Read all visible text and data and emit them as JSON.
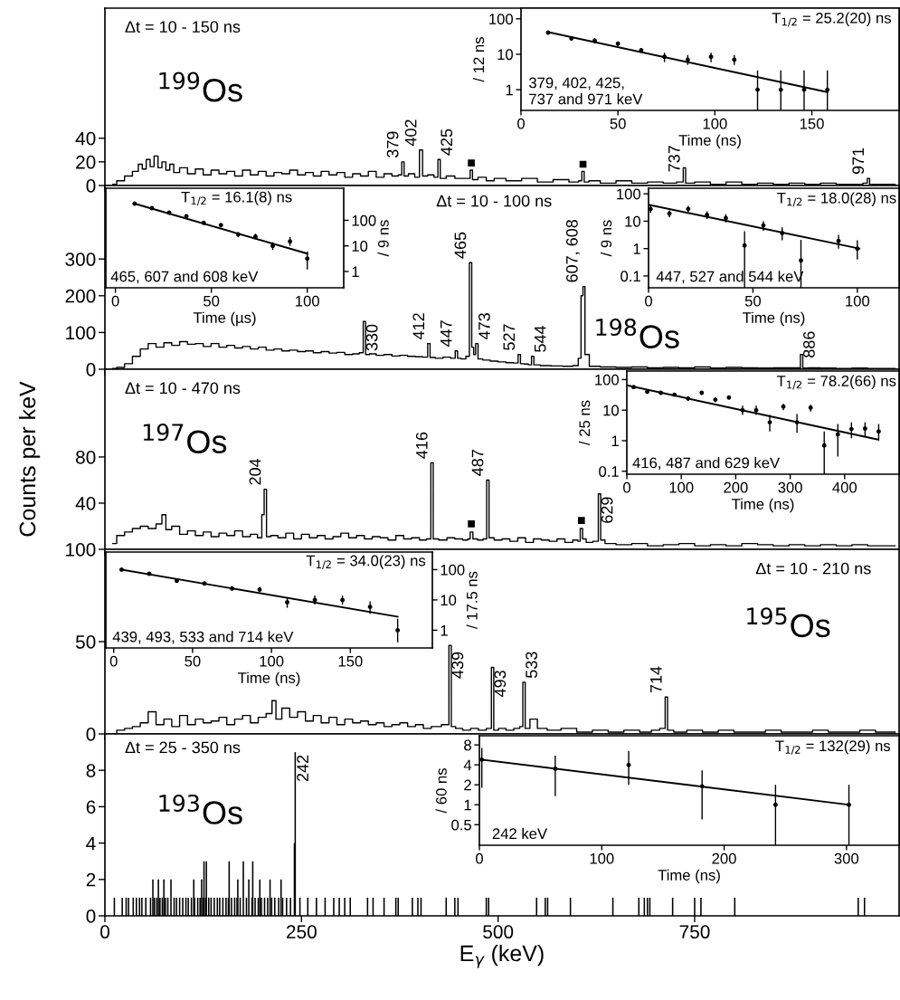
{
  "chart_data": [
    {
      "type": "step",
      "annotations": [
        "Δt = 10 - 150 ns",
        "$^{199}$Os",
        {
          "text": "379",
          "x": 379,
          "y": 20
        },
        {
          "text": "402",
          "x": 402,
          "y": 30
        },
        {
          "text": "425",
          "x": 425,
          "y": 22
        },
        {
          "text": "737",
          "x": 737,
          "y": 8
        },
        {
          "text": "971",
          "x": 971,
          "y": 6
        }
      ],
      "xlim": [
        0,
        1010
      ],
      "xticks": [
        0,
        250,
        500,
        750
      ],
      "ylim": [
        0,
        150
      ],
      "yticks": [
        0,
        20,
        40
      ],
      "tick_labels": "y",
      "series": [
        {
          "color": "#000000",
          "x": [
            10,
            20,
            30,
            40,
            45,
            50,
            55,
            60,
            65,
            70,
            75,
            80,
            85,
            90,
            100,
            110,
            120,
            130,
            140,
            150,
            160,
            170,
            180,
            190,
            200,
            210,
            220,
            230,
            240,
            250,
            260,
            270,
            280,
            290,
            300,
            310,
            320,
            330,
            340,
            350,
            360,
            370,
            376,
            379,
            382,
            390,
            398,
            402,
            406,
            415,
            422,
            425,
            428,
            440,
            450,
            463,
            466,
            469,
            480,
            490,
            500,
            520,
            540,
            560,
            580,
            600,
            605,
            608,
            611,
            620,
            640,
            660,
            680,
            700,
            720,
            734,
            737,
            740,
            760,
            780,
            800,
            820,
            840,
            860,
            880,
            900,
            920,
            940,
            960,
            968,
            971,
            974,
            990,
            1005
          ],
          "values": [
            1,
            4,
            8,
            12,
            18,
            14,
            22,
            16,
            25,
            15,
            20,
            13,
            18,
            11,
            15,
            10,
            14,
            9,
            13,
            10,
            12,
            8,
            13,
            9,
            12,
            8,
            11,
            10,
            13,
            9,
            11,
            8,
            12,
            9,
            11,
            7,
            10,
            8,
            12,
            7,
            10,
            8,
            9,
            20,
            8,
            10,
            7,
            30,
            8,
            9,
            7,
            22,
            6,
            8,
            6,
            6,
            13,
            5,
            7,
            4,
            6,
            4,
            6,
            3,
            5,
            3,
            4,
            12,
            3,
            4,
            2,
            4,
            2,
            3,
            2,
            3,
            15,
            2,
            3,
            1,
            3,
            1,
            2,
            1,
            2,
            1,
            2,
            1,
            1,
            2,
            6,
            1,
            1,
            1
          ]
        },
        {
          "type": "scatter",
          "marker": "square",
          "color": "#000000",
          "x": [
            466,
            608
          ],
          "values": [
            19,
            18
          ]
        }
      ]
    },
    {
      "type": "scatter",
      "log": "y",
      "xlabel": "Time (ns)",
      "ylabel": "/ 12 ns",
      "annotations": [
        "T$_{1/2}$ = 25.2(20) ns",
        "379, 402, 425,\n737 and 971 keV"
      ],
      "xlim": [
        0,
        195
      ],
      "xticks": [
        0,
        50,
        100,
        150
      ],
      "ylim": [
        0.26,
        200
      ],
      "yticks": [
        1,
        10,
        100
      ],
      "series": [
        {
          "marker": "circle",
          "color": "#000000",
          "x": [
            14,
            26,
            38,
            50,
            62,
            74,
            86,
            98,
            110,
            122,
            134,
            146,
            158
          ],
          "values": [
            41,
            28,
            24,
            20,
            13,
            8.5,
            7,
            8.5,
            7,
            1,
            1,
            1,
            1
          ],
          "errors": [
            [
              37,
              45
            ],
            [
              24,
              32
            ],
            [
              20,
              28
            ],
            [
              17,
              23
            ],
            [
              11,
              15
            ],
            [
              6,
              11
            ],
            [
              5,
              9.5
            ],
            [
              6,
              11
            ],
            [
              5,
              9.5
            ],
            [
              0.26,
              3.5
            ],
            [
              0.26,
              3.5
            ],
            [
              0.26,
              3.5
            ],
            [
              0.26,
              3.5
            ]
          ]
        },
        {
          "type": "line",
          "color": "#000000",
          "x": [
            14,
            158
          ],
          "values": [
            42,
            0.85
          ]
        }
      ]
    },
    {
      "type": "step",
      "annotations": [
        "Δt = 10 - 100 ns",
        "$^{198}$Os",
        {
          "text": "330",
          "x": 330,
          "y": 130
        },
        {
          "text": "412",
          "x": 412,
          "y": 70
        },
        {
          "text": "447",
          "x": 447,
          "y": 50
        },
        {
          "text": "465",
          "x": 465,
          "y": 290
        },
        {
          "text": "473",
          "x": 473,
          "y": 70
        },
        {
          "text": "527",
          "x": 527,
          "y": 40
        },
        {
          "text": "544",
          "x": 544,
          "y": 35
        },
        {
          "text": "607, 608",
          "x": 607,
          "y": 225
        },
        {
          "text": "886",
          "x": 886,
          "y": 20
        }
      ],
      "xlim": [
        0,
        1010
      ],
      "xticks": [
        0,
        250,
        500,
        750
      ],
      "ylim": [
        0,
        500
      ],
      "yticks": [
        0,
        100,
        200,
        300
      ],
      "tick_labels": "y",
      "series": [
        {
          "color": "#000000",
          "x": [
            10,
            20,
            30,
            40,
            50,
            60,
            70,
            80,
            90,
            100,
            110,
            120,
            130,
            140,
            150,
            160,
            170,
            180,
            190,
            200,
            210,
            220,
            230,
            240,
            250,
            260,
            270,
            280,
            290,
            300,
            310,
            320,
            327,
            330,
            333,
            340,
            350,
            360,
            370,
            380,
            390,
            400,
            409,
            412,
            415,
            425,
            435,
            444,
            447,
            450,
            456,
            462,
            465,
            468,
            470,
            473,
            476,
            485,
            495,
            505,
            515,
            524,
            527,
            530,
            536,
            541,
            544,
            547,
            560,
            575,
            590,
            600,
            604,
            607,
            609,
            612,
            620,
            640,
            660,
            680,
            700,
            720,
            740,
            760,
            780,
            800,
            820,
            840,
            860,
            883,
            886,
            889,
            900,
            920,
            940,
            960,
            980,
            1005
          ],
          "values": [
            2,
            5,
            15,
            35,
            55,
            70,
            60,
            72,
            65,
            75,
            68,
            70,
            62,
            70,
            60,
            65,
            58,
            62,
            55,
            60,
            52,
            55,
            50,
            52,
            48,
            50,
            45,
            48,
            44,
            46,
            40,
            42,
            45,
            130,
            40,
            42,
            38,
            40,
            36,
            38,
            35,
            34,
            33,
            70,
            32,
            30,
            33,
            30,
            50,
            30,
            28,
            35,
            290,
            60,
            40,
            70,
            28,
            25,
            22,
            20,
            18,
            17,
            40,
            15,
            14,
            12,
            35,
            12,
            10,
            9,
            8,
            10,
            30,
            200,
            225,
            40,
            8,
            6,
            5,
            6,
            4,
            5,
            4,
            6,
            3,
            5,
            4,
            3,
            4,
            4,
            40,
            3,
            4,
            3,
            2,
            3,
            2,
            2
          ]
        }
      ]
    },
    {
      "type": "scatter",
      "log": "y",
      "xlabel": "Time (µs)",
      "ylabel": "/ 9 ns",
      "annotations": [
        "T$_{1/2}$ = 16.1(8) ns",
        "465, 607 and 608 keV"
      ],
      "xlim": [
        -5,
        119
      ],
      "xticks": [
        0,
        50,
        100
      ],
      "ylim": [
        0.23,
        1800
      ],
      "yticks": [
        1,
        10,
        100
      ],
      "series": [
        {
          "marker": "circle",
          "color": "#000000",
          "x": [
            10,
            19,
            28,
            37,
            46,
            55,
            64,
            73,
            82,
            91,
            100
          ],
          "values": [
            450,
            300,
            200,
            145,
            80,
            65,
            28,
            23,
            10,
            15,
            3.2
          ],
          "errors": [
            null,
            null,
            null,
            null,
            null,
            null,
            [
              22,
              35
            ],
            [
              18,
              30
            ],
            [
              7,
              14
            ],
            [
              10,
              22
            ],
            [
              1.2,
              6
            ]
          ]
        },
        {
          "type": "line",
          "color": "#000000",
          "x": [
            10,
            100
          ],
          "values": [
            450,
            5
          ]
        }
      ]
    },
    {
      "type": "scatter",
      "log": "y",
      "xlabel": "Time (ns)",
      "ylabel": "/ 9 ns",
      "annotations": [
        "T$_{1/2}$ = 18.0(28) ns",
        "447, 527 and 544 keV"
      ],
      "xlim": [
        0,
        120
      ],
      "xticks": [
        0,
        50,
        100
      ],
      "ylim": [
        0.037,
        160
      ],
      "yticks": [
        0.1,
        1,
        10,
        100
      ],
      "series": [
        {
          "marker": "circle",
          "color": "#000000",
          "x": [
            1,
            10,
            19,
            28,
            37,
            46,
            55,
            64,
            73,
            91,
            100
          ],
          "values": [
            28,
            19,
            28,
            17,
            13,
            1.3,
            7,
            3.7,
            0.37,
            1.9,
            1
          ],
          "errors": [
            [
              20,
              38
            ],
            [
              14,
              25
            ],
            [
              21,
              36
            ],
            [
              12,
              23
            ],
            [
              9,
              18
            ],
            [
              0.037,
              4.3
            ],
            [
              4.5,
              10
            ],
            [
              2,
              6
            ],
            [
              0.037,
              2.1
            ],
            [
              1,
              3.2
            ],
            [
              0.4,
              2
            ]
          ]
        },
        {
          "type": "line",
          "color": "#000000",
          "x": [
            0,
            101
          ],
          "values": [
            40,
            1
          ]
        }
      ]
    },
    {
      "type": "step",
      "ylabel": "Counts per keV",
      "annotations": [
        "Δt = 10 - 470 ns",
        "$^{197}$Os",
        {
          "text": "204",
          "x": 204,
          "y": 52
        },
        {
          "text": "416",
          "x": 416,
          "y": 75
        },
        {
          "text": "487",
          "x": 487,
          "y": 60
        },
        {
          "text": "629",
          "x": 629,
          "y": 48
        }
      ],
      "xlim": [
        0,
        1010
      ],
      "xticks": [
        0,
        250,
        500,
        750
      ],
      "ylim": [
        0,
        156
      ],
      "yticks": [
        40,
        80
      ],
      "tick_labels": "y",
      "series": [
        {
          "color": "#000000",
          "x": [
            10,
            20,
            30,
            40,
            50,
            60,
            70,
            75,
            80,
            90,
            100,
            110,
            120,
            130,
            140,
            150,
            160,
            170,
            180,
            190,
            198,
            201,
            204,
            207,
            215,
            225,
            235,
            245,
            255,
            265,
            275,
            285,
            295,
            305,
            315,
            325,
            335,
            345,
            355,
            365,
            375,
            385,
            395,
            405,
            413,
            416,
            419,
            430,
            440,
            450,
            460,
            463,
            466,
            470,
            478,
            484,
            487,
            490,
            500,
            510,
            520,
            530,
            540,
            550,
            560,
            570,
            580,
            590,
            600,
            603,
            606,
            609,
            615,
            626,
            629,
            632,
            640,
            660,
            680,
            700,
            720,
            740,
            760,
            780,
            800,
            820,
            840,
            860,
            880,
            900,
            920,
            940,
            960,
            980,
            1005
          ],
          "values": [
            5,
            12,
            15,
            18,
            20,
            18,
            22,
            30,
            17,
            20,
            13,
            16,
            12,
            15,
            11,
            14,
            12,
            16,
            11,
            13,
            10,
            30,
            52,
            11,
            12,
            10,
            14,
            9,
            13,
            10,
            12,
            9,
            11,
            14,
            10,
            12,
            9,
            11,
            10,
            8,
            12,
            9,
            10,
            8,
            9,
            75,
            9,
            8,
            10,
            9,
            8,
            9,
            15,
            9,
            8,
            9,
            60,
            10,
            8,
            9,
            7,
            10,
            6,
            9,
            8,
            7,
            9,
            6,
            8,
            7,
            18,
            9,
            6,
            7,
            48,
            8,
            5,
            4,
            5,
            3,
            4,
            5,
            3,
            4,
            3,
            5,
            4,
            3,
            4,
            3,
            4,
            3,
            4,
            3,
            3
          ]
        },
        {
          "type": "scatter",
          "marker": "square",
          "color": "#000000",
          "x": [
            466,
            606
          ],
          "values": [
            22,
            25
          ]
        }
      ]
    },
    {
      "type": "scatter",
      "log": "y",
      "xlabel": "Time (ns)",
      "ylabel": "/ 25 ns",
      "annotations": [
        "T$_{1/2}$ = 78.2(66) ns",
        "416, 487 and 629 keV"
      ],
      "xlim": [
        0,
        500
      ],
      "xticks": [
        0,
        100,
        200,
        300,
        400
      ],
      "ylim": [
        0.08,
        190
      ],
      "yticks": [
        0.1,
        1,
        10,
        100
      ],
      "series": [
        {
          "marker": "circle",
          "color": "#000000",
          "x": [
            12.5,
            37.5,
            62.5,
            87.5,
            112.5,
            137.5,
            162.5,
            187.5,
            212.5,
            237.5,
            262.5,
            287.5,
            312.5,
            337.5,
            362.5,
            387.5,
            412.5,
            437.5,
            462.5
          ],
          "values": [
            57,
            40,
            37,
            32,
            24,
            37,
            22,
            26,
            10,
            10,
            4,
            13,
            4,
            12,
            0.7,
            1.6,
            2.4,
            2.5,
            2
          ],
          "errors": [
            [
              52,
              62
            ],
            [
              36,
              44
            ],
            [
              33,
              41
            ],
            [
              28,
              36
            ],
            [
              20,
              28
            ],
            [
              32,
              42
            ],
            [
              18,
              26
            ],
            [
              22,
              30
            ],
            [
              7,
              14
            ],
            [
              7,
              14
            ],
            [
              2,
              7
            ],
            [
              10,
              16
            ],
            [
              1.8,
              7.5
            ],
            [
              9,
              15
            ],
            [
              0.08,
              2
            ],
            [
              0.3,
              3.5
            ],
            [
              1.2,
              4
            ],
            [
              1.3,
              4
            ],
            [
              1,
              3.5
            ]
          ]
        },
        {
          "type": "line",
          "color": "#000000",
          "x": [
            0,
            460
          ],
          "values": [
            65,
            1.1
          ]
        }
      ]
    },
    {
      "type": "step",
      "annotations": [
        "Δt = 10 - 210 ns",
        "$^{195}$Os",
        {
          "text": "439",
          "x": 439,
          "y": 46
        },
        {
          "text": "493",
          "x": 493,
          "y": 36
        },
        {
          "text": "533",
          "x": 533,
          "y": 28
        },
        {
          "text": "714",
          "x": 714,
          "y": 20
        }
      ],
      "xlim": [
        0,
        1010
      ],
      "xticks": [
        0,
        250,
        500,
        750
      ],
      "ylim": [
        0,
        100
      ],
      "yticks": [
        0,
        50,
        100
      ],
      "tick_labels": "y",
      "series": [
        {
          "color": "#000000",
          "x": [
            10,
            20,
            30,
            40,
            50,
            60,
            70,
            80,
            90,
            100,
            110,
            120,
            130,
            140,
            150,
            160,
            170,
            180,
            190,
            200,
            210,
            215,
            220,
            230,
            240,
            250,
            260,
            270,
            280,
            290,
            300,
            310,
            320,
            330,
            340,
            350,
            360,
            370,
            380,
            390,
            400,
            410,
            420,
            436,
            439,
            442,
            450,
            460,
            470,
            480,
            490,
            493,
            496,
            505,
            515,
            525,
            530,
            533,
            536,
            545,
            555,
            570,
            590,
            610,
            630,
            650,
            670,
            690,
            700,
            711,
            714,
            717,
            730,
            750,
            770,
            790,
            810,
            830,
            850,
            870,
            890,
            910,
            930,
            950,
            970,
            990,
            1005
          ],
          "values": [
            0,
            2,
            3,
            4,
            6,
            12,
            5,
            8,
            4,
            10,
            5,
            8,
            6,
            7,
            9,
            5,
            8,
            10,
            6,
            9,
            11,
            18,
            8,
            14,
            9,
            12,
            7,
            10,
            6,
            9,
            5,
            8,
            6,
            7,
            5,
            6,
            4,
            5,
            6,
            4,
            5,
            3,
            4,
            5,
            48,
            4,
            3,
            2,
            3,
            2,
            3,
            36,
            2,
            3,
            2,
            3,
            4,
            28,
            3,
            8,
            3,
            2,
            3,
            1,
            2,
            1,
            2,
            1,
            2,
            3,
            20,
            2,
            1,
            2,
            1,
            2,
            1,
            1,
            2,
            1,
            1,
            2,
            1,
            1,
            2,
            1,
            1
          ]
        }
      ]
    },
    {
      "type": "scatter",
      "log": "y",
      "xlabel": "Time (ns)",
      "ylabel": "/ 17.5 ns",
      "annotations": [
        "T$_{1/2}$ = 34.0(23) ns",
        "439, 493, 533 and 714 keV"
      ],
      "xlim": [
        -5,
        202
      ],
      "xticks": [
        0,
        50,
        100,
        150
      ],
      "ylim": [
        0.26,
        380
      ],
      "yticks": [
        1,
        10,
        100
      ],
      "series": [
        {
          "marker": "circle",
          "color": "#000000",
          "x": [
            5,
            22.5,
            40,
            57.5,
            75,
            92.5,
            110,
            127.5,
            145,
            162.5,
            180
          ],
          "values": [
            100,
            73,
            43,
            35,
            24,
            22,
            8.4,
            10,
            10,
            5.9,
            1
          ],
          "errors": [
            null,
            null,
            [
              38,
              48
            ],
            [
              31,
              39
            ],
            [
              20,
              28
            ],
            [
              18,
              27
            ],
            [
              5.5,
              12
            ],
            [
              7,
              14
            ],
            [
              7,
              14
            ],
            [
              3.5,
              9
            ],
            [
              0.4,
              2.4
            ]
          ]
        },
        {
          "type": "line",
          "color": "#000000",
          "x": [
            5,
            180
          ],
          "values": [
            100,
            2.8
          ]
        }
      ]
    },
    {
      "type": "bar",
      "xlabel": "E$_{γ}$ (keV)",
      "annotations": [
        "Δt = 25 - 350 ns",
        "$^{193}$Os",
        {
          "text": "242",
          "x": 242,
          "y": 9
        }
      ],
      "xlim": [
        0,
        1010
      ],
      "xticks": [
        0,
        250,
        500,
        750
      ],
      "ylim": [
        0,
        10
      ],
      "yticks": [
        0,
        2,
        4,
        6,
        8
      ],
      "series": [
        {
          "color": "#000000",
          "x": [
            12,
            22,
            27,
            30,
            36,
            40,
            44,
            47,
            52,
            58,
            61,
            63,
            66,
            68,
            70,
            73,
            75,
            77,
            80,
            84,
            88,
            91,
            95,
            99,
            103,
            106,
            110,
            113,
            114,
            118,
            121,
            123,
            125,
            126,
            128,
            129,
            132,
            135,
            139,
            143,
            146,
            150,
            154,
            157,
            158,
            161,
            165,
            168,
            169,
            172,
            176,
            180,
            183,
            187,
            188,
            191,
            195,
            197,
            199,
            203,
            207,
            210,
            212,
            216,
            221,
            224,
            226,
            231,
            236,
            241,
            242,
            248,
            258,
            269,
            280,
            291,
            298,
            305,
            312,
            334,
            341,
            355,
            370,
            373,
            391,
            398,
            402,
            434,
            445,
            449,
            485,
            488,
            549,
            560,
            563,
            592,
            646,
            679,
            686,
            690,
            693,
            722,
            750,
            758,
            801,
            958,
            966
          ],
          "values": [
            1,
            1,
            1,
            1,
            1,
            1,
            1,
            1,
            1,
            1,
            2,
            1,
            1,
            2,
            1,
            1,
            2,
            1,
            1,
            2,
            1,
            1,
            1,
            1,
            1,
            1,
            1,
            2,
            1,
            1,
            1,
            2,
            1,
            3,
            1,
            3,
            1,
            1,
            1,
            1,
            1,
            1,
            1,
            1,
            3,
            1,
            1,
            1,
            2,
            1,
            3,
            1,
            2,
            1,
            3,
            1,
            1,
            2,
            1,
            1,
            1,
            2,
            1,
            1,
            1,
            2,
            1,
            1,
            1,
            4,
            9,
            1,
            1,
            1,
            1,
            1,
            1,
            1,
            1,
            1,
            1,
            1,
            1,
            1,
            1,
            1,
            1,
            1,
            1,
            1,
            1,
            1,
            1,
            1,
            1,
            1,
            1,
            1,
            1,
            1,
            1,
            1,
            1,
            1,
            1,
            1,
            1
          ]
        }
      ]
    },
    {
      "type": "scatter",
      "log": "y",
      "xlabel": "Time (ns)",
      "ylabel": "/ 60 ns",
      "annotations": [
        "T$_{1/2}$ = 132(29) ns",
        "242 keV"
      ],
      "xlim": [
        0,
        343
      ],
      "xticks": [
        0,
        100,
        200,
        300
      ],
      "ylim": [
        0.245,
        11
      ],
      "yticks": [
        0.5,
        1,
        2,
        4,
        8
      ],
      "series": [
        {
          "marker": "circle",
          "color": "#000000",
          "x": [
            2,
            62,
            122,
            182,
            242,
            302
          ],
          "values": [
            4.8,
            3.5,
            4,
            1.9,
            1,
            1
          ],
          "errors": [
            [
              1.8,
              7.2
            ],
            [
              1.35,
              5.5
            ],
            [
              2,
              6.5
            ],
            [
              0.6,
              3.3
            ],
            [
              0.245,
              2
            ],
            [
              0.245,
              2
            ]
          ]
        },
        {
          "type": "line",
          "color": "#000000",
          "x": [
            2,
            302
          ],
          "values": [
            4.8,
            1
          ]
        }
      ]
    }
  ]
}
